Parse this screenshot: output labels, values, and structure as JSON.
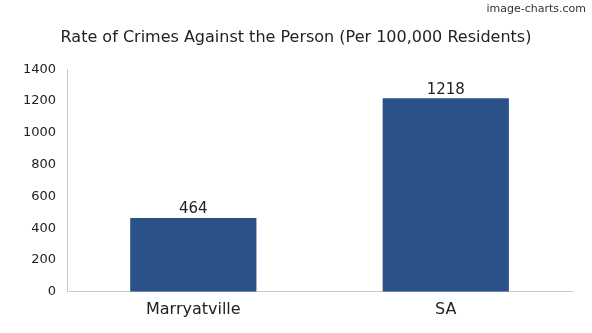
{
  "chart_data": {
    "type": "bar",
    "title": "Rate of Crimes Against the Person (Per 100,000 Residents)",
    "annotations": [
      "image-charts.com"
    ],
    "categories": [
      "Marryatville",
      "SA"
    ],
    "values": [
      464,
      1218
    ],
    "color": "#2b5189",
    "ylim": [
      0,
      1400
    ],
    "yticks": [
      0,
      200,
      400,
      600,
      800,
      1000,
      1200,
      1400
    ],
    "grid": false,
    "data_labels": true
  }
}
